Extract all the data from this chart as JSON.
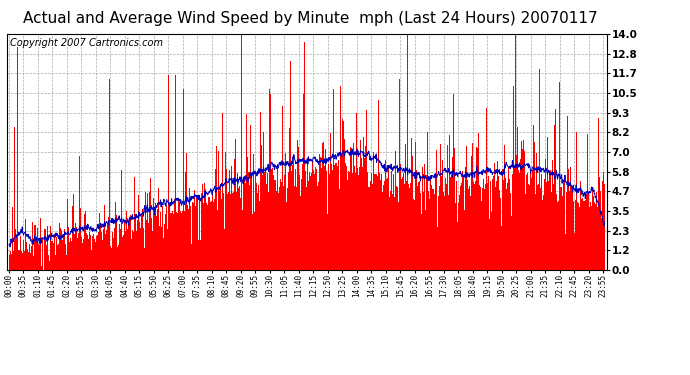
{
  "title": "Actual and Average Wind Speed by Minute  mph (Last 24 Hours) 20070117",
  "copyright": "Copyright 2007 Cartronics.com",
  "bar_color": "#FF0000",
  "line_color": "#0000BB",
  "background_color": "#FFFFFF",
  "plot_bg_color": "#FFFFFF",
  "grid_color": "#AAAAAA",
  "yticks": [
    0.0,
    1.2,
    2.3,
    3.5,
    4.7,
    5.8,
    7.0,
    8.2,
    9.3,
    10.5,
    11.7,
    12.8,
    14.0
  ],
  "ylim": [
    0.0,
    14.0
  ],
  "title_fontsize": 11,
  "copyright_fontsize": 7,
  "tick_fontsize": 7.5,
  "xtick_fontsize": 5.5,
  "n_minutes": 1440,
  "label_interval": 35,
  "seed": 42
}
